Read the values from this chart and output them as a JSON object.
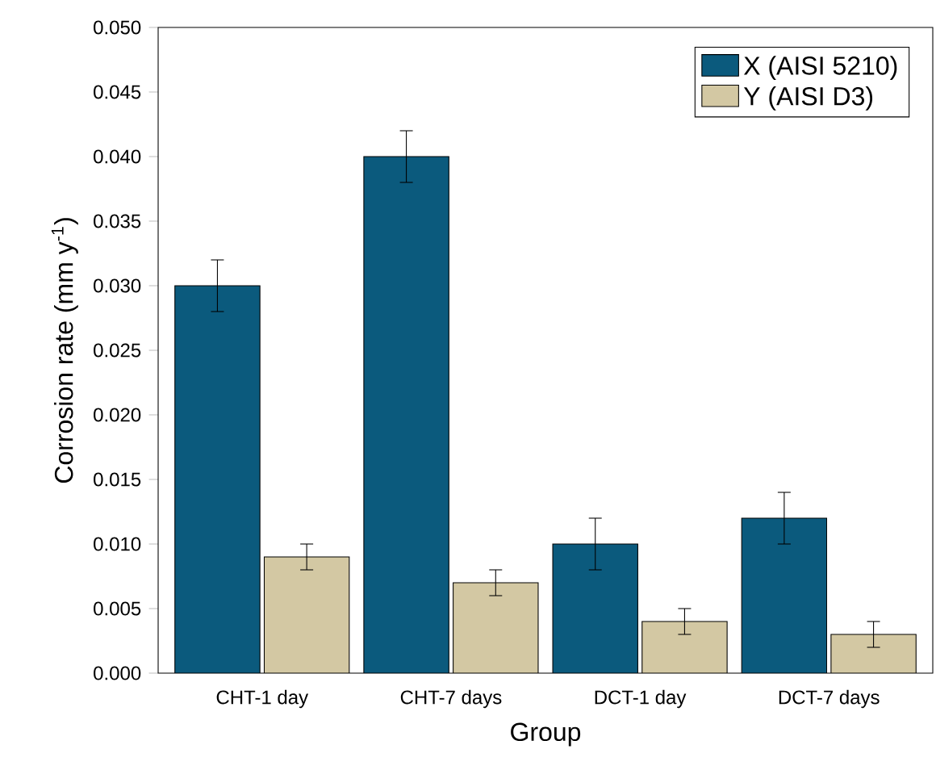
{
  "chart_data": {
    "type": "bar",
    "xlabel": "Group",
    "ylabel": "Corrosion rate (mm y$^{-1}$)",
    "categories": [
      "CHT-1 day",
      "CHT-7 days",
      "DCT-1 day",
      "DCT-7 days"
    ],
    "series": [
      {
        "name": "X (AISI 5210)",
        "color": "#0b5a7d",
        "values": [
          0.03,
          0.04,
          0.01,
          0.012
        ],
        "errors": [
          0.002,
          0.002,
          0.002,
          0.002
        ]
      },
      {
        "name": "Y (AISI D3)",
        "color": "#d3c8a3",
        "values": [
          0.009,
          0.007,
          0.004,
          0.003
        ],
        "errors": [
          0.001,
          0.001,
          0.001,
          0.001
        ]
      }
    ],
    "ylim": [
      0,
      0.05
    ],
    "yticks": [
      {
        "value": 0,
        "label": "0.000"
      },
      {
        "value": 0.005,
        "label": "0.005"
      },
      {
        "value": 0.01,
        "label": "0.010"
      },
      {
        "value": 0.015,
        "label": "0.015"
      },
      {
        "value": 0.02,
        "label": "0.020"
      },
      {
        "value": 0.025,
        "label": "0.025"
      },
      {
        "value": 0.03,
        "label": "0.030"
      },
      {
        "value": 0.035,
        "label": "0.035"
      },
      {
        "value": 0.04,
        "label": "0.040"
      },
      {
        "value": 0.045,
        "label": "0.045"
      },
      {
        "value": 0.05,
        "label": "0.050"
      }
    ],
    "grid": false,
    "legend": "top right"
  }
}
